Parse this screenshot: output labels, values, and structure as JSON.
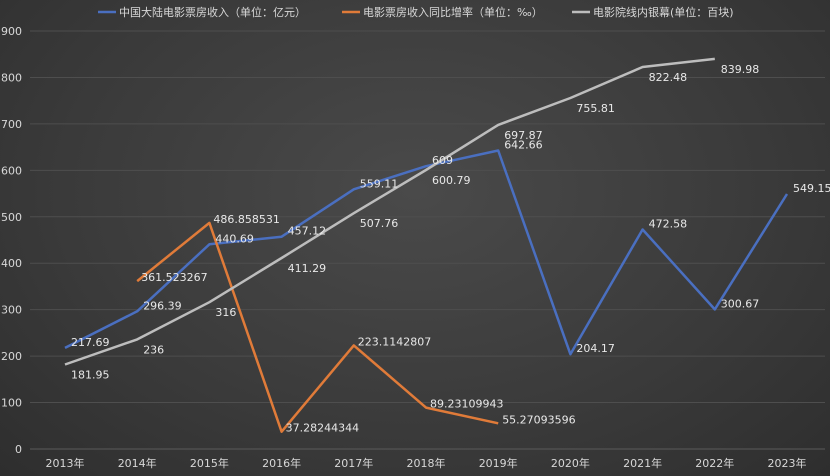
{
  "chart_data": {
    "type": "line",
    "categories": [
      "2013年",
      "2014年",
      "2015年",
      "2016年",
      "2017年",
      "2018年",
      "2019年",
      "2020年",
      "2021年",
      "2022年",
      "2023年"
    ],
    "ylim": [
      0,
      900
    ],
    "yticks": [
      "0",
      "100",
      "200",
      "300",
      "400",
      "500",
      "600",
      "700",
      "800",
      "900"
    ],
    "grid": true,
    "legend_position": "top",
    "series": [
      {
        "name": "中国大陆电影票房收入（单位：亿元）",
        "color": "#4a6fc0",
        "values": [
          217.69,
          296.39,
          440.69,
          457.12,
          559.11,
          609,
          642.66,
          204.17,
          472.58,
          300.67,
          549.15
        ],
        "labels": [
          "217.69",
          "296.39",
          "440.69",
          "457.12",
          "559.11",
          "609",
          "642.66",
          "204.17",
          "472.58",
          "300.67",
          "549.15"
        ]
      },
      {
        "name": "电影票房收入同比增率（单位：‰）",
        "color": "#e07b39",
        "values": [
          null,
          361.523267,
          486.858531,
          37.28244344,
          223.1142807,
          89.23109943,
          55.27093596,
          null,
          null,
          null,
          null
        ],
        "labels": [
          null,
          "361.523267",
          "486.858531",
          "37.28244344",
          "223.1142807",
          "89.23109943",
          "55.27093596",
          null,
          null,
          null,
          null
        ]
      },
      {
        "name": "电影院线内银幕(单位：百块)",
        "color": "#bdbdbd",
        "values": [
          181.95,
          236,
          316,
          411.29,
          507.76,
          600.79,
          697.87,
          755.81,
          822.48,
          839.98,
          null
        ],
        "labels": [
          "181.95",
          "236",
          "316",
          "411.29",
          "507.76",
          "600.79",
          "697.87",
          "755.81",
          "822.48",
          "839.98",
          null
        ]
      }
    ]
  }
}
